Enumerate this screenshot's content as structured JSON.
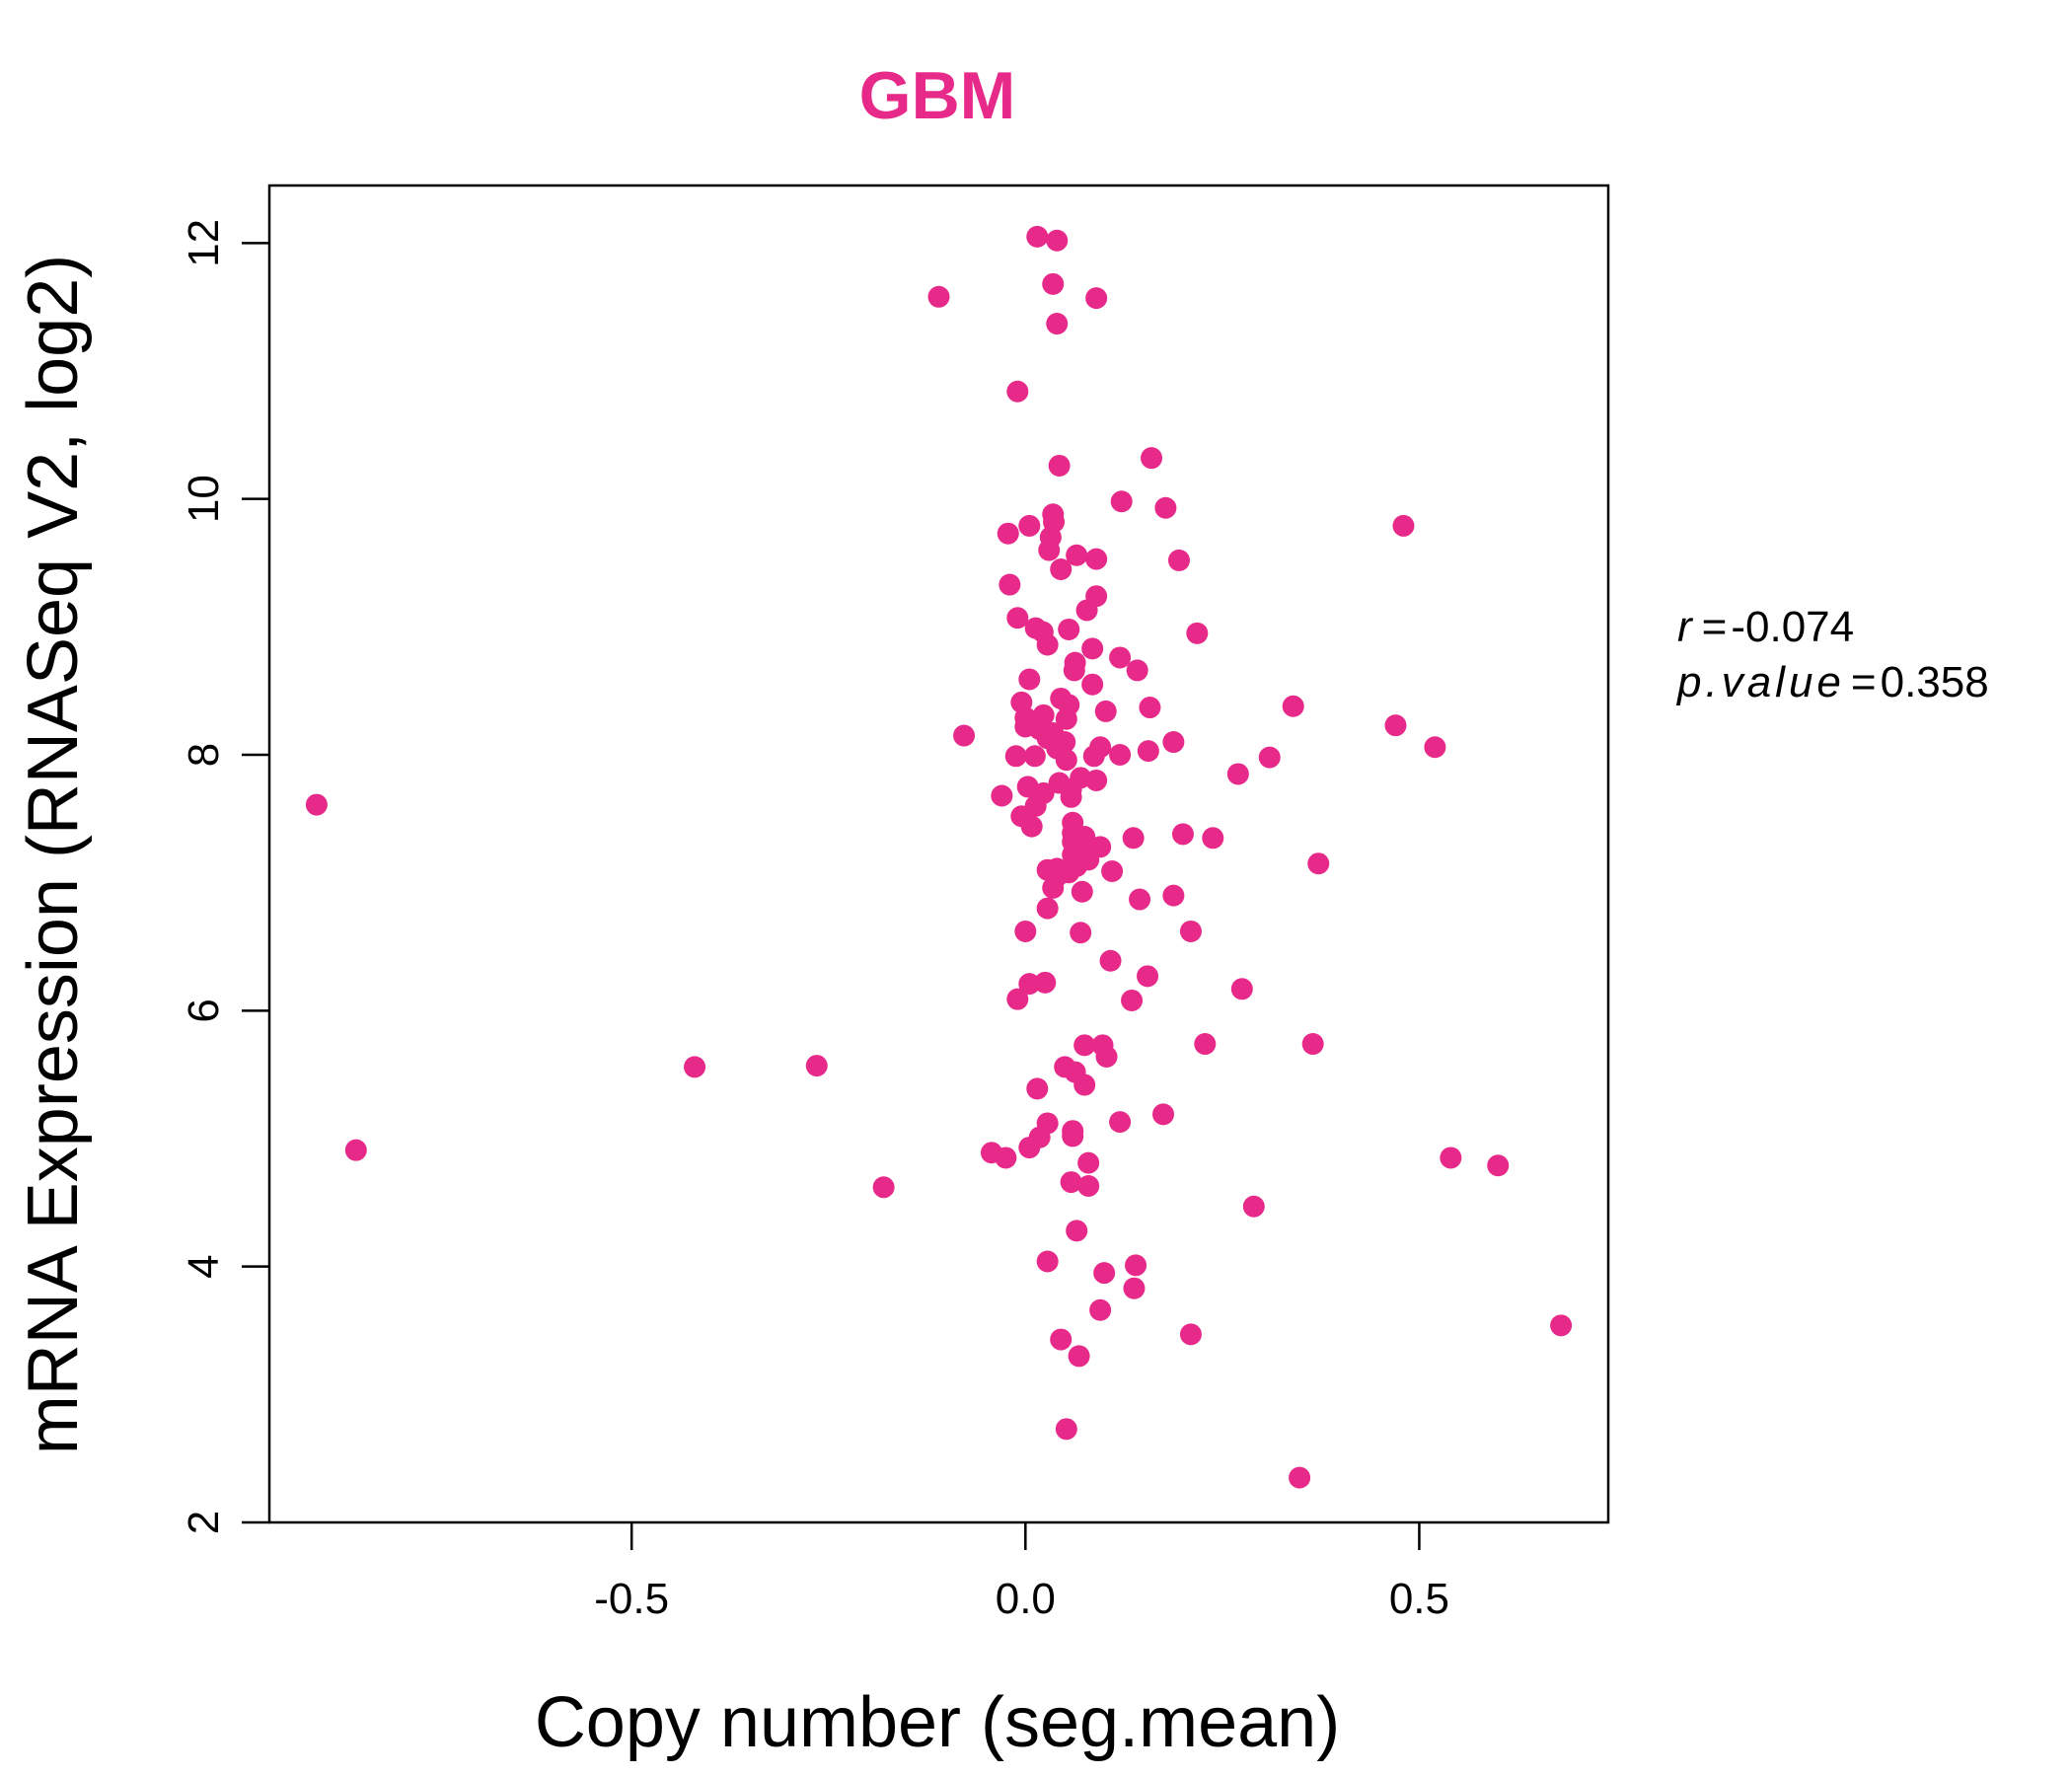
{
  "chart_data": {
    "type": "scatter",
    "title": "GBM",
    "title_color": "#E7298A",
    "point_color": "#E7298A",
    "xlabel": "Copy number (seg.mean)",
    "ylabel": "mRNA Expression (RNASeq V2, log2)",
    "xlim": [
      -0.96,
      0.74
    ],
    "ylim": [
      2.0,
      12.45
    ],
    "x_ticks": [
      -0.5,
      0.0,
      0.5
    ],
    "x_tick_labels": [
      "-0.5",
      "0.0",
      "0.5"
    ],
    "y_ticks": [
      2,
      4,
      6,
      8,
      10,
      12
    ],
    "y_tick_labels": [
      "2",
      "4",
      "6",
      "8",
      "10",
      "12"
    ],
    "grid": false,
    "stats": {
      "r_label": "r",
      "r_value": "-0.074",
      "p_label": "p.value",
      "p_value": "0.358"
    },
    "points": [
      {
        "x": 0.015,
        "y": 12.05
      },
      {
        "x": 0.04,
        "y": 12.02
      },
      {
        "x": -0.11,
        "y": 11.58
      },
      {
        "x": 0.035,
        "y": 11.68
      },
      {
        "x": 0.09,
        "y": 11.57
      },
      {
        "x": 0.04,
        "y": 11.37
      },
      {
        "x": -0.01,
        "y": 10.84
      },
      {
        "x": 0.16,
        "y": 10.32
      },
      {
        "x": 0.043,
        "y": 10.26
      },
      {
        "x": 0.122,
        "y": 9.98
      },
      {
        "x": 0.178,
        "y": 9.93
      },
      {
        "x": 0.035,
        "y": 9.88
      },
      {
        "x": 0.036,
        "y": 9.82
      },
      {
        "x": 0.005,
        "y": 9.79
      },
      {
        "x": 0.48,
        "y": 9.79
      },
      {
        "x": -0.022,
        "y": 9.73
      },
      {
        "x": 0.032,
        "y": 9.7
      },
      {
        "x": 0.03,
        "y": 9.6
      },
      {
        "x": 0.065,
        "y": 9.56
      },
      {
        "x": 0.09,
        "y": 9.53
      },
      {
        "x": 0.195,
        "y": 9.52
      },
      {
        "x": 0.045,
        "y": 9.45
      },
      {
        "x": -0.02,
        "y": 9.33
      },
      {
        "x": 0.09,
        "y": 9.24
      },
      {
        "x": 0.078,
        "y": 9.13
      },
      {
        "x": -0.01,
        "y": 9.07
      },
      {
        "x": 0.013,
        "y": 8.99
      },
      {
        "x": 0.055,
        "y": 8.98
      },
      {
        "x": 0.022,
        "y": 8.96
      },
      {
        "x": 0.218,
        "y": 8.95
      },
      {
        "x": 0.028,
        "y": 8.86
      },
      {
        "x": 0.085,
        "y": 8.83
      },
      {
        "x": 0.12,
        "y": 8.76
      },
      {
        "x": 0.063,
        "y": 8.72
      },
      {
        "x": 0.062,
        "y": 8.66
      },
      {
        "x": 0.142,
        "y": 8.66
      },
      {
        "x": 0.005,
        "y": 8.59
      },
      {
        "x": 0.085,
        "y": 8.55
      },
      {
        "x": 0.045,
        "y": 8.44
      },
      {
        "x": -0.005,
        "y": 8.41
      },
      {
        "x": 0.055,
        "y": 8.39
      },
      {
        "x": 0.158,
        "y": 8.37
      },
      {
        "x": 0.34,
        "y": 8.38
      },
      {
        "x": 0.102,
        "y": 8.34
      },
      {
        "x": 0.023,
        "y": 8.31
      },
      {
        "x": 0.0,
        "y": 8.29
      },
      {
        "x": 0.052,
        "y": 8.28
      },
      {
        "x": 0.47,
        "y": 8.23
      },
      {
        "x": 0.0,
        "y": 8.22
      },
      {
        "x": 0.018,
        "y": 8.2
      },
      {
        "x": 0.035,
        "y": 8.17
      },
      {
        "x": -0.078,
        "y": 8.15
      },
      {
        "x": 0.028,
        "y": 8.13
      },
      {
        "x": 0.05,
        "y": 8.1
      },
      {
        "x": 0.188,
        "y": 8.1
      },
      {
        "x": 0.095,
        "y": 8.06
      },
      {
        "x": 0.52,
        "y": 8.06
      },
      {
        "x": 0.04,
        "y": 8.05
      },
      {
        "x": 0.156,
        "y": 8.03
      },
      {
        "x": 0.12,
        "y": 8.0
      },
      {
        "x": -0.012,
        "y": 7.99
      },
      {
        "x": 0.012,
        "y": 7.99
      },
      {
        "x": 0.087,
        "y": 7.99
      },
      {
        "x": 0.31,
        "y": 7.98
      },
      {
        "x": 0.052,
        "y": 7.96
      },
      {
        "x": 0.27,
        "y": 7.85
      },
      {
        "x": 0.07,
        "y": 7.82
      },
      {
        "x": 0.09,
        "y": 7.8
      },
      {
        "x": 0.043,
        "y": 7.78
      },
      {
        "x": 0.003,
        "y": 7.75
      },
      {
        "x": 0.058,
        "y": 7.73
      },
      {
        "x": 0.023,
        "y": 7.7
      },
      {
        "x": -0.03,
        "y": 7.68
      },
      {
        "x": 0.058,
        "y": 7.67
      },
      {
        "x": 0.013,
        "y": 7.6
      },
      {
        "x": -0.9,
        "y": 7.61
      },
      {
        "x": -0.005,
        "y": 7.52
      },
      {
        "x": 0.06,
        "y": 7.47
      },
      {
        "x": 0.008,
        "y": 7.44
      },
      {
        "x": 0.06,
        "y": 7.39
      },
      {
        "x": 0.2,
        "y": 7.38
      },
      {
        "x": 0.075,
        "y": 7.36
      },
      {
        "x": 0.137,
        "y": 7.35
      },
      {
        "x": 0.238,
        "y": 7.35
      },
      {
        "x": 0.06,
        "y": 7.32
      },
      {
        "x": 0.095,
        "y": 7.28
      },
      {
        "x": 0.075,
        "y": 7.25
      },
      {
        "x": 0.06,
        "y": 7.22
      },
      {
        "x": 0.08,
        "y": 7.18
      },
      {
        "x": 0.372,
        "y": 7.15
      },
      {
        "x": 0.065,
        "y": 7.13
      },
      {
        "x": 0.04,
        "y": 7.11
      },
      {
        "x": 0.028,
        "y": 7.1
      },
      {
        "x": 0.11,
        "y": 7.09
      },
      {
        "x": 0.055,
        "y": 7.08
      },
      {
        "x": 0.04,
        "y": 7.05
      },
      {
        "x": 0.035,
        "y": 6.96
      },
      {
        "x": 0.072,
        "y": 6.93
      },
      {
        "x": 0.188,
        "y": 6.9
      },
      {
        "x": 0.145,
        "y": 6.87
      },
      {
        "x": 0.028,
        "y": 6.8
      },
      {
        "x": 0.0,
        "y": 6.62
      },
      {
        "x": 0.21,
        "y": 6.62
      },
      {
        "x": 0.07,
        "y": 6.61
      },
      {
        "x": 0.108,
        "y": 6.39
      },
      {
        "x": 0.155,
        "y": 6.27
      },
      {
        "x": 0.025,
        "y": 6.22
      },
      {
        "x": 0.005,
        "y": 6.21
      },
      {
        "x": 0.275,
        "y": 6.17
      },
      {
        "x": -0.01,
        "y": 6.09
      },
      {
        "x": 0.135,
        "y": 6.08
      },
      {
        "x": 0.075,
        "y": 5.73
      },
      {
        "x": 0.098,
        "y": 5.73
      },
      {
        "x": 0.228,
        "y": 5.74
      },
      {
        "x": 0.365,
        "y": 5.74
      },
      {
        "x": 0.103,
        "y": 5.64
      },
      {
        "x": -0.42,
        "y": 5.56
      },
      {
        "x": -0.265,
        "y": 5.57
      },
      {
        "x": 0.05,
        "y": 5.56
      },
      {
        "x": 0.063,
        "y": 5.52
      },
      {
        "x": 0.075,
        "y": 5.42
      },
      {
        "x": 0.015,
        "y": 5.39
      },
      {
        "x": 0.175,
        "y": 5.19
      },
      {
        "x": 0.12,
        "y": 5.13
      },
      {
        "x": 0.028,
        "y": 5.12
      },
      {
        "x": 0.06,
        "y": 5.06
      },
      {
        "x": 0.06,
        "y": 5.02
      },
      {
        "x": 0.018,
        "y": 5.01
      },
      {
        "x": 0.005,
        "y": 4.93
      },
      {
        "x": -0.85,
        "y": 4.91
      },
      {
        "x": -0.043,
        "y": 4.89
      },
      {
        "x": -0.025,
        "y": 4.85
      },
      {
        "x": 0.54,
        "y": 4.85
      },
      {
        "x": 0.08,
        "y": 4.81
      },
      {
        "x": 0.6,
        "y": 4.79
      },
      {
        "x": 0.058,
        "y": 4.66
      },
      {
        "x": -0.18,
        "y": 4.62
      },
      {
        "x": 0.08,
        "y": 4.63
      },
      {
        "x": 0.29,
        "y": 4.47
      },
      {
        "x": 0.065,
        "y": 4.28
      },
      {
        "x": 0.028,
        "y": 4.04
      },
      {
        "x": 0.14,
        "y": 4.01
      },
      {
        "x": 0.1,
        "y": 3.95
      },
      {
        "x": 0.138,
        "y": 3.83
      },
      {
        "x": 0.095,
        "y": 3.66
      },
      {
        "x": 0.68,
        "y": 3.54
      },
      {
        "x": 0.21,
        "y": 3.47
      },
      {
        "x": 0.045,
        "y": 3.43
      },
      {
        "x": 0.068,
        "y": 3.3
      },
      {
        "x": 0.052,
        "y": 2.73
      },
      {
        "x": 0.348,
        "y": 2.35
      }
    ]
  }
}
